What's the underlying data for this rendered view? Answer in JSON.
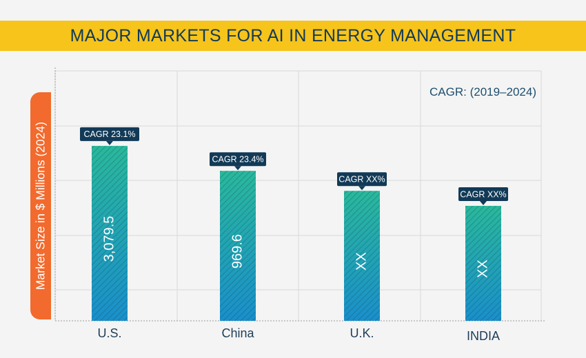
{
  "chart_data": {
    "type": "bar",
    "title": "MAJOR MARKETS FOR AI IN ENERGY MANAGEMENT",
    "ylabel": "Market Size in $ Millions (2024)",
    "xlabel": "",
    "note": "CAGR: (2019–2024)",
    "categories": [
      "U.S.",
      "China",
      "U.K.",
      "INDIA"
    ],
    "value_labels": [
      "3,079.5",
      "969.6",
      "XX",
      "XX"
    ],
    "cagr_labels": [
      "CAGR 23.1%",
      "CAGR 23.4%",
      "CAGR XX%",
      "CAGR XX%"
    ],
    "relative_heights": [
      0.7,
      0.6,
      0.52,
      0.46
    ],
    "grid": true,
    "colors": {
      "bar_top": "#2ab89b",
      "bar_bottom": "#1a8fcb",
      "callout": "#123a57",
      "title_bar": "#f6c41b",
      "axis_label_box": "#f26a2d",
      "title_text": "#123a57"
    }
  }
}
